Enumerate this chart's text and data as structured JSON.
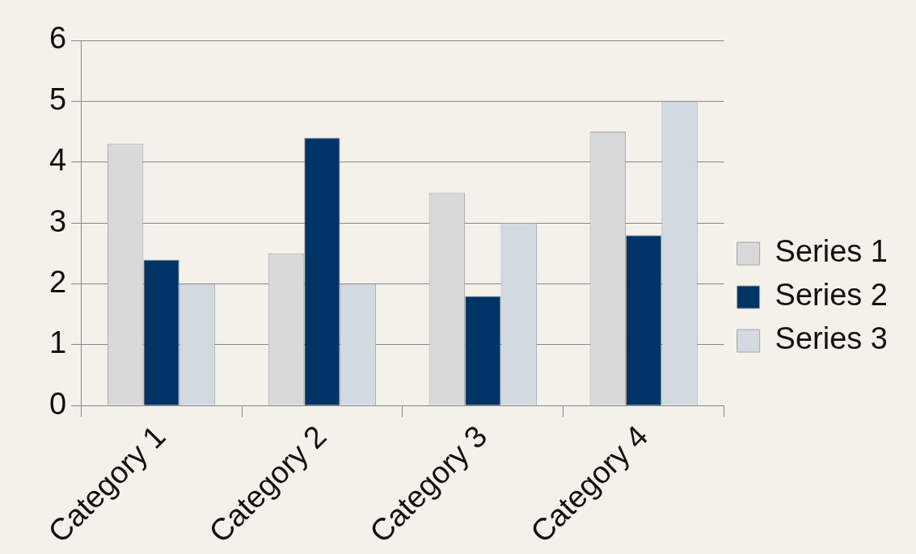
{
  "chart_data": {
    "type": "bar",
    "categories": [
      "Category 1",
      "Category 2",
      "Category 3",
      "Category 4"
    ],
    "series": [
      {
        "name": "Series 1",
        "color": "#d9d9d9",
        "values": [
          4.3,
          2.5,
          3.5,
          4.5
        ]
      },
      {
        "name": "Series 2",
        "color": "#003366",
        "values": [
          2.4,
          4.4,
          1.8,
          2.8
        ]
      },
      {
        "name": "Series 3",
        "color": "#d3d9e1",
        "values": [
          2,
          2,
          3,
          5
        ]
      }
    ],
    "ylim": [
      0,
      6
    ],
    "yticks": [
      0,
      1,
      2,
      3,
      4,
      5,
      6
    ],
    "grid": "y",
    "legend": "right"
  }
}
